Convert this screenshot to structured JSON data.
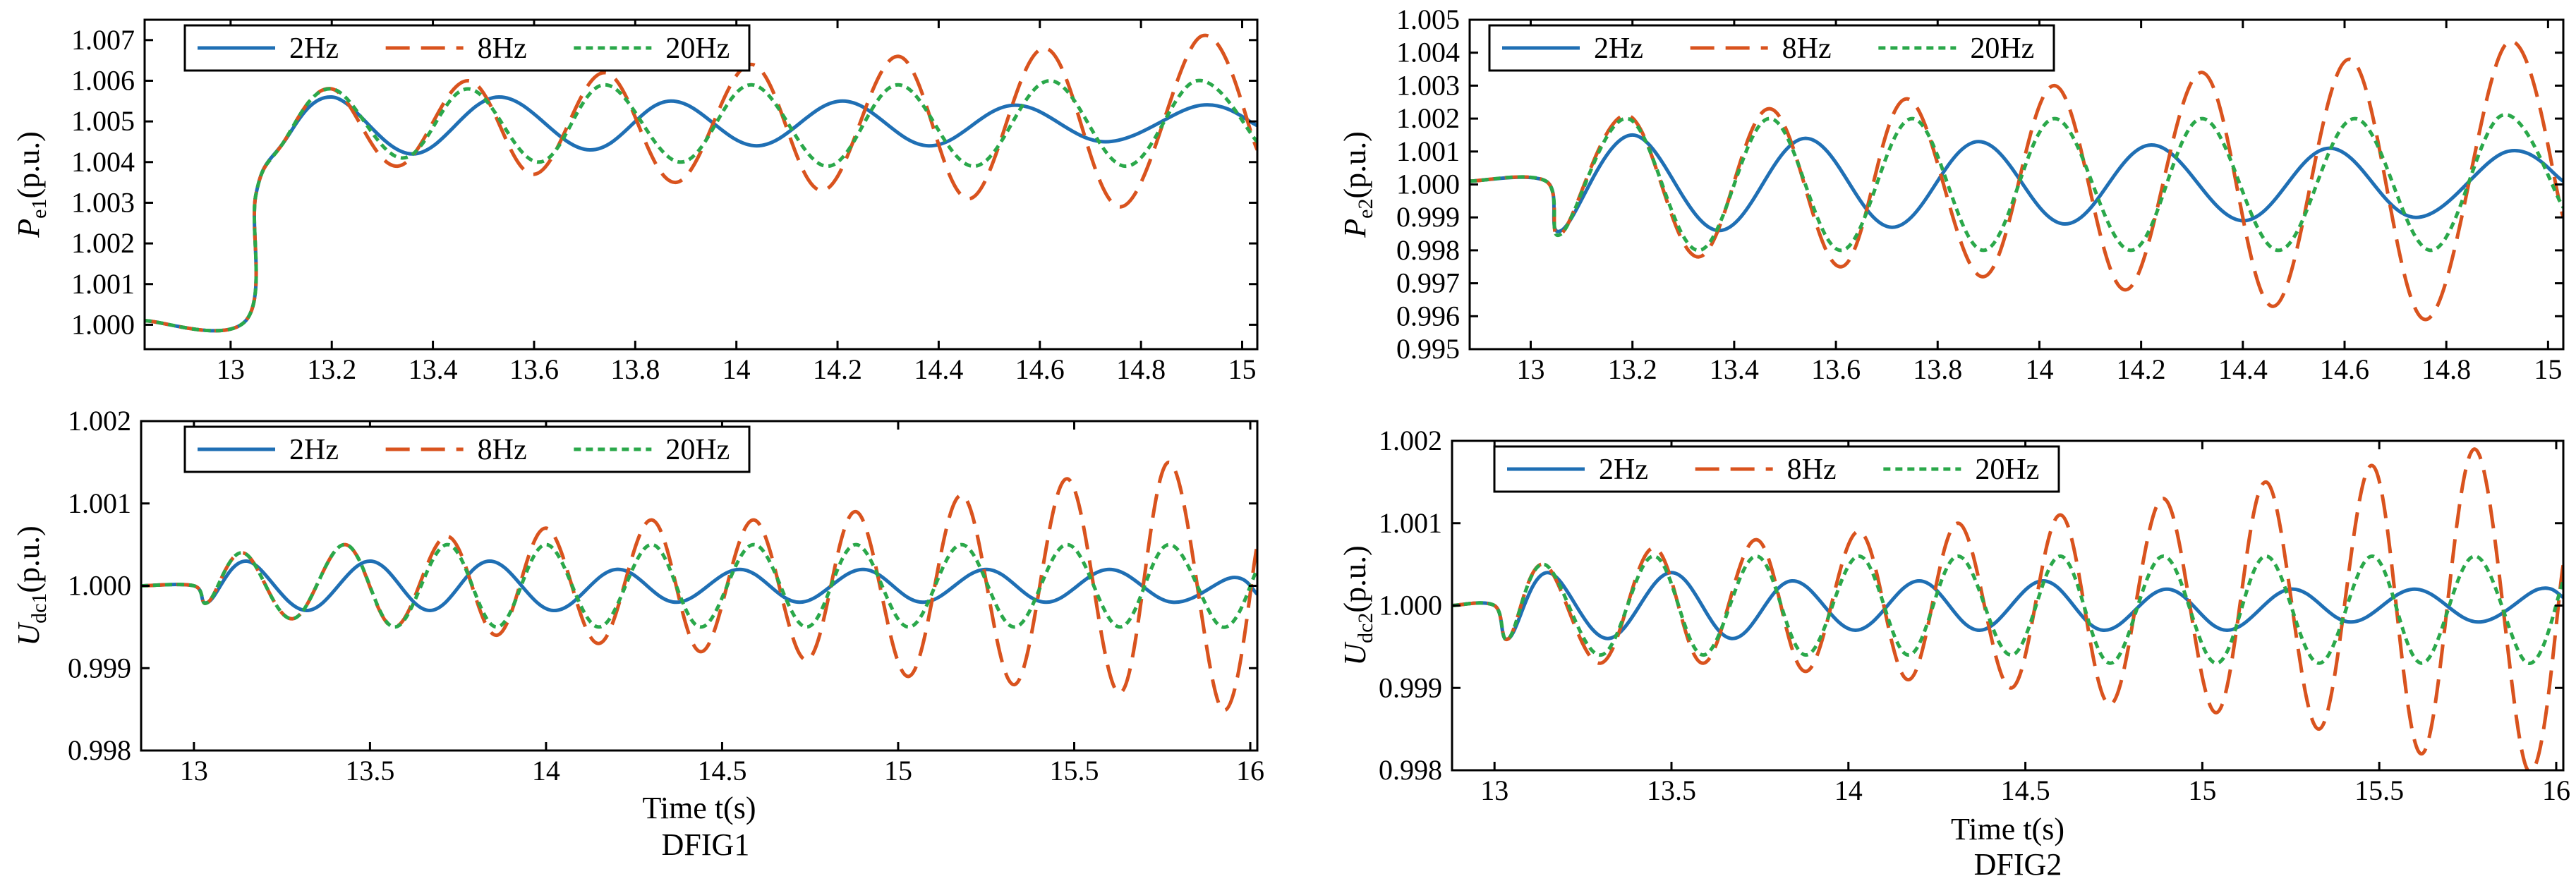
{
  "figure": {
    "captions": {
      "left": "DFIG1",
      "right": "DFIG2"
    },
    "time_label": "Time t(s)"
  },
  "colors": {
    "2Hz": "#1f6fb4",
    "8Hz": "#d9531e",
    "20Hz": "#2aa84a"
  },
  "chart_data": [
    {
      "id": "pe1",
      "type": "line",
      "panel": "top-left",
      "ylabel": {
        "main": "P",
        "sub": "e1",
        "unit": "(p.u.)"
      },
      "xlabel": "",
      "xlim": [
        12.83,
        15.03
      ],
      "ylim": [
        0.9994,
        1.0075
      ],
      "xticks": [
        13,
        13.2,
        13.4,
        13.6,
        13.8,
        14,
        14.2,
        14.4,
        14.6,
        14.8,
        15
      ],
      "xticklabels": [
        "13",
        "13.2",
        "13.4",
        "13.6",
        "13.8",
        "14",
        "14.2",
        "14.4",
        "14.6",
        "14.8",
        "15"
      ],
      "yticks": [
        1.0,
        1.001,
        1.002,
        1.003,
        1.004,
        1.005,
        1.006,
        1.007
      ],
      "yticklabels": [
        "1.000",
        "1.001",
        "1.002",
        "1.003",
        "1.004",
        "1.005",
        "1.006",
        "1.007"
      ],
      "legend": [
        "2Hz",
        "8Hz",
        "20Hz"
      ],
      "series": [
        {
          "name": "2Hz",
          "style": "solid",
          "x": [
            12.83,
            13.03,
            13.05,
            13.1,
            13.2,
            13.36,
            13.53,
            13.71,
            13.87,
            14.04,
            14.21,
            14.38,
            14.55,
            14.73,
            14.92,
            15.03
          ],
          "y": [
            1.0001,
            1.0001,
            1.0032,
            1.0044,
            1.0056,
            1.0042,
            1.0056,
            1.0043,
            1.0055,
            1.0044,
            1.0055,
            1.0044,
            1.0054,
            1.0045,
            1.0054,
            1.0049
          ]
        },
        {
          "name": "8Hz",
          "style": "dashed",
          "x": [
            12.83,
            13.03,
            13.05,
            13.1,
            13.2,
            13.33,
            13.47,
            13.6,
            13.74,
            13.88,
            14.03,
            14.17,
            14.32,
            14.46,
            14.61,
            14.76,
            14.92,
            15.03
          ],
          "y": [
            1.0001,
            1.0001,
            1.0032,
            1.0044,
            1.0058,
            1.0039,
            1.006,
            1.0037,
            1.0062,
            1.0035,
            1.0064,
            1.0033,
            1.0066,
            1.0031,
            1.0068,
            1.0029,
            1.0071,
            1.0043
          ]
        },
        {
          "name": "20Hz",
          "style": "dotted",
          "x": [
            12.83,
            13.03,
            13.05,
            13.1,
            13.2,
            13.34,
            13.47,
            13.61,
            13.74,
            13.89,
            14.03,
            14.18,
            14.32,
            14.47,
            14.62,
            14.77,
            14.91,
            15.03
          ],
          "y": [
            1.0001,
            1.0001,
            1.0032,
            1.0044,
            1.0058,
            1.0041,
            1.0058,
            1.004,
            1.0059,
            1.004,
            1.0059,
            1.0039,
            1.0059,
            1.0039,
            1.006,
            1.0039,
            1.006,
            1.0045
          ]
        }
      ]
    },
    {
      "id": "pe2",
      "type": "line",
      "panel": "top-right",
      "ylabel": {
        "main": "P",
        "sub": "e2",
        "unit": "(p.u.)"
      },
      "xlabel": "",
      "xlim": [
        12.88,
        15.03
      ],
      "ylim": [
        0.995,
        1.005
      ],
      "xticks": [
        13,
        13.2,
        13.4,
        13.6,
        13.8,
        14,
        14.2,
        14.4,
        14.6,
        14.8,
        15
      ],
      "xticklabels": [
        "13",
        "13.2",
        "13.4",
        "13.6",
        "13.8",
        "14",
        "14.2",
        "14.4",
        "14.6",
        "14.8",
        "15"
      ],
      "yticks": [
        0.995,
        0.996,
        0.997,
        0.998,
        0.999,
        1.0,
        1.001,
        1.002,
        1.003,
        1.004,
        1.005
      ],
      "yticklabels": [
        "0.995",
        "0.996",
        "0.997",
        "0.998",
        "0.999",
        "1.000",
        "1.001",
        "1.002",
        "1.003",
        "1.004",
        "1.005"
      ],
      "legend": [
        "2Hz",
        "8Hz",
        "20Hz"
      ],
      "series": [
        {
          "name": "2Hz",
          "style": "solid",
          "x": [
            12.88,
            13.03,
            13.06,
            13.2,
            13.37,
            13.54,
            13.71,
            13.88,
            14.05,
            14.22,
            14.4,
            14.57,
            14.74,
            14.92,
            15.03
          ],
          "y": [
            1.0001,
            1.0001,
            0.9986,
            1.0015,
            0.9986,
            1.0014,
            0.9987,
            1.0013,
            0.9988,
            1.0012,
            0.9989,
            1.0011,
            0.999,
            1.001,
            1.0001
          ]
        },
        {
          "name": "8Hz",
          "style": "dashed",
          "x": [
            12.88,
            13.03,
            13.06,
            13.19,
            13.33,
            13.47,
            13.61,
            13.74,
            13.89,
            14.03,
            14.17,
            14.32,
            14.46,
            14.61,
            14.76,
            14.92,
            15.03
          ],
          "y": [
            1.0001,
            1.0001,
            0.9985,
            1.0021,
            0.9978,
            1.0023,
            0.9975,
            1.0026,
            0.9972,
            1.003,
            0.9968,
            1.0034,
            0.9963,
            1.0038,
            0.9959,
            1.0043,
            0.999
          ]
        },
        {
          "name": "20Hz",
          "style": "dotted",
          "x": [
            12.88,
            13.03,
            13.06,
            13.19,
            13.33,
            13.47,
            13.61,
            13.75,
            13.89,
            14.03,
            14.18,
            14.32,
            14.47,
            14.62,
            14.77,
            14.91,
            15.03
          ],
          "y": [
            1.0001,
            1.0001,
            0.9985,
            1.002,
            0.998,
            1.002,
            0.998,
            1.002,
            0.998,
            1.002,
            0.998,
            1.002,
            0.998,
            1.002,
            0.998,
            1.0021,
            0.9993
          ]
        }
      ]
    },
    {
      "id": "udc1",
      "type": "line",
      "panel": "bottom-left",
      "ylabel": {
        "main": "U",
        "sub": "dc1",
        "unit": "(p.u.)"
      },
      "xlabel": "Time t(s)",
      "xlim": [
        12.85,
        16.02
      ],
      "ylim": [
        0.998,
        1.002
      ],
      "xticks": [
        13,
        13.5,
        14,
        14.5,
        15,
        15.5,
        16
      ],
      "xticklabels": [
        "13",
        "13.5",
        "14",
        "14.5",
        "15",
        "15.5",
        "16"
      ],
      "yticks": [
        0.998,
        0.999,
        1.0,
        1.001,
        1.002
      ],
      "yticklabels": [
        "0.998",
        "0.999",
        "1.000",
        "1.001",
        "1.002"
      ],
      "legend": [
        "2Hz",
        "8Hz",
        "20Hz"
      ],
      "series": [
        {
          "name": "2Hz",
          "style": "solid",
          "x": [
            12.85,
            13.0,
            13.04,
            13.15,
            13.32,
            13.5,
            13.67,
            13.84,
            14.02,
            14.2,
            14.37,
            14.55,
            14.72,
            14.9,
            15.07,
            15.25,
            15.42,
            15.6,
            15.78,
            15.95,
            16.02
          ],
          "y": [
            1.0,
            1.0,
            0.9998,
            1.0003,
            0.9997,
            1.0003,
            0.9997,
            1.0003,
            0.9997,
            1.0002,
            0.9998,
            1.0002,
            0.9998,
            1.0002,
            0.9998,
            1.0002,
            0.9998,
            1.0002,
            0.9998,
            1.0001,
            0.9999
          ]
        },
        {
          "name": "8Hz",
          "style": "dashed",
          "x": [
            12.85,
            13.0,
            13.04,
            13.14,
            13.28,
            13.43,
            13.57,
            13.72,
            13.86,
            14.0,
            14.15,
            14.3,
            14.44,
            14.59,
            14.74,
            14.88,
            15.03,
            15.18,
            15.33,
            15.48,
            15.63,
            15.77,
            15.92,
            16.02
          ],
          "y": [
            1.0,
            1.0,
            0.9998,
            1.0004,
            0.9996,
            1.0005,
            0.9995,
            1.0006,
            0.9994,
            1.0007,
            0.9993,
            1.0008,
            0.9992,
            1.0008,
            0.9991,
            1.0009,
            0.9989,
            1.0011,
            0.9988,
            1.0013,
            0.9987,
            1.0015,
            0.9985,
            1.0005
          ]
        },
        {
          "name": "20Hz",
          "style": "dotted",
          "x": [
            12.85,
            13.0,
            13.04,
            13.14,
            13.28,
            13.43,
            13.57,
            13.72,
            13.86,
            14.0,
            14.15,
            14.3,
            14.44,
            14.59,
            14.74,
            14.88,
            15.03,
            15.18,
            15.33,
            15.48,
            15.63,
            15.77,
            15.92,
            16.02
          ],
          "y": [
            1.0,
            1.0,
            0.9998,
            1.0004,
            0.9996,
            1.0005,
            0.9995,
            1.0005,
            0.9995,
            1.0005,
            0.9995,
            1.0005,
            0.9995,
            1.0005,
            0.9995,
            1.0005,
            0.9995,
            1.0005,
            0.9995,
            1.0005,
            0.9995,
            1.0005,
            0.9995,
            1.0002
          ]
        }
      ]
    },
    {
      "id": "udc2",
      "type": "line",
      "panel": "bottom-right",
      "ylabel": {
        "main": "U",
        "sub": "dc2",
        "unit": "(p.u.)"
      },
      "xlabel": "Time t(s)",
      "xlim": [
        12.88,
        16.02
      ],
      "ylim": [
        0.998,
        1.002
      ],
      "xticks": [
        13,
        13.5,
        14,
        14.5,
        15,
        15.5,
        16
      ],
      "xticklabels": [
        "13",
        "13.5",
        "14",
        "14.5",
        "15",
        "15.5",
        "16"
      ],
      "yticks": [
        0.998,
        0.999,
        1.0,
        1.001,
        1.002
      ],
      "yticklabels": [
        "0.998",
        "0.999",
        "1.000",
        "1.001",
        "1.002"
      ],
      "legend": [
        "2Hz",
        "8Hz",
        "20Hz"
      ],
      "series": [
        {
          "name": "2Hz",
          "style": "solid",
          "x": [
            12.88,
            13.0,
            13.04,
            13.15,
            13.32,
            13.5,
            13.67,
            13.84,
            14.02,
            14.2,
            14.37,
            14.55,
            14.72,
            14.9,
            15.07,
            15.25,
            15.42,
            15.6,
            15.78,
            15.95,
            16.02
          ],
          "y": [
            1.0,
            1.0,
            0.9996,
            1.0004,
            0.9996,
            1.0004,
            0.9996,
            1.0003,
            0.9997,
            1.0003,
            0.9997,
            1.0003,
            0.9997,
            1.0002,
            0.9997,
            1.0002,
            0.9998,
            1.0002,
            0.9998,
            1.0002,
            1.0001
          ]
        },
        {
          "name": "8Hz",
          "style": "dashed",
          "x": [
            12.88,
            13.0,
            13.04,
            13.14,
            13.3,
            13.45,
            13.59,
            13.74,
            13.88,
            14.03,
            14.17,
            14.31,
            14.46,
            14.6,
            14.74,
            14.89,
            15.04,
            15.18,
            15.33,
            15.48,
            15.62,
            15.77,
            15.92,
            16.02
          ],
          "y": [
            1.0,
            1.0,
            0.9996,
            1.0005,
            0.9993,
            1.0007,
            0.9993,
            1.0008,
            0.9992,
            1.0009,
            0.9991,
            1.001,
            0.999,
            1.0011,
            0.9988,
            1.0013,
            0.9987,
            1.0015,
            0.9985,
            1.0017,
            0.9982,
            1.0019,
            0.998,
            1.0005
          ]
        },
        {
          "name": "20Hz",
          "style": "dotted",
          "x": [
            12.88,
            13.0,
            13.04,
            13.14,
            13.3,
            13.45,
            13.59,
            13.74,
            13.88,
            14.03,
            14.17,
            14.31,
            14.46,
            14.6,
            14.74,
            14.89,
            15.04,
            15.18,
            15.33,
            15.48,
            15.62,
            15.77,
            15.92,
            16.02
          ],
          "y": [
            1.0,
            1.0,
            0.9996,
            1.0005,
            0.9994,
            1.0006,
            0.9994,
            1.0006,
            0.9994,
            1.0006,
            0.9994,
            1.0006,
            0.9994,
            1.0006,
            0.9993,
            1.0006,
            0.9993,
            1.0006,
            0.9993,
            1.0006,
            0.9993,
            1.0006,
            0.9993,
            1.0003
          ]
        }
      ]
    }
  ]
}
